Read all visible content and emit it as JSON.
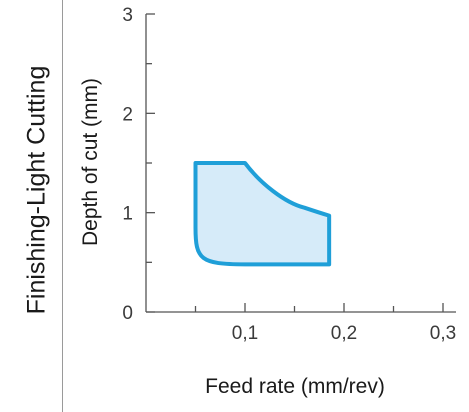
{
  "section_label": "Finishing-Light Cutting",
  "chart_data": {
    "type": "area",
    "title": "",
    "xlabel": "Feed rate (mm/rev)",
    "ylabel": "Depth of cut (mm)",
    "xlim": [
      0,
      0.3
    ],
    "ylim": [
      0,
      3
    ],
    "x_ticks": [
      0.1,
      0.2,
      0.3
    ],
    "x_tick_labels": [
      "0,1",
      "0,2",
      "0,3"
    ],
    "y_ticks": [
      0,
      1,
      2,
      3
    ],
    "y_tick_labels": [
      "0",
      "1",
      "2",
      "3"
    ],
    "grid": false,
    "series": [
      {
        "x": [
          0.05,
          0.1,
          0.13,
          0.16,
          0.185,
          0.185,
          0.1,
          0.07,
          0.052,
          0.05,
          0.05
        ],
        "y": [
          1.5,
          1.5,
          1.23,
          1.05,
          0.97,
          0.48,
          0.48,
          0.52,
          0.65,
          0.85,
          1.5
        ]
      }
    ],
    "colors": {
      "fill": "#d6ebf9",
      "stroke": "#1f9fd8",
      "axis": "#555555"
    }
  }
}
